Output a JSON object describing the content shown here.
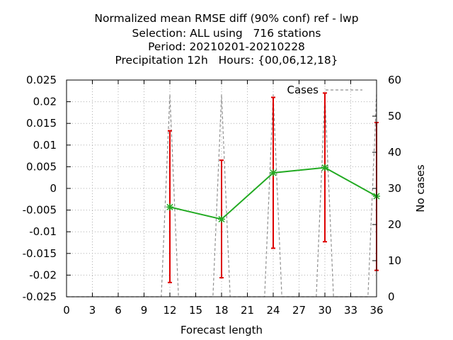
{
  "title_lines": [
    "Normalized mean RMSE diff (90% conf) ref - lwp",
    "Selection: ALL using   716 stations",
    "Period: 20210201-20210228",
    "Precipitation 12h   Hours: {00,06,12,18}"
  ],
  "chart_data": {
    "type": "line",
    "xlabel": "Forecast length",
    "ylabel": "",
    "y2label": "No cases",
    "xlim": [
      0,
      36
    ],
    "ylim": [
      -0.025,
      0.025
    ],
    "y2lim": [
      0,
      60
    ],
    "x_ticks": [
      "0",
      "3",
      "6",
      "9",
      "12",
      "15",
      "18",
      "21",
      "24",
      "27",
      "30",
      "33",
      "36"
    ],
    "y_ticks": [
      "0.025",
      "0.02",
      "0.015",
      "0.01",
      "0.005",
      "0",
      "-0.005",
      "-0.01",
      "-0.015",
      "-0.02",
      "-0.025"
    ],
    "y2_ticks": [
      "60",
      "50",
      "40",
      "30",
      "20",
      "10",
      "0"
    ],
    "grid": true,
    "legend": {
      "label": "Cases",
      "position": "top-right"
    },
    "series": [
      {
        "role": "mean",
        "color": "#22aa22",
        "x": [
          12,
          18,
          24,
          30,
          36
        ],
        "y": [
          -0.0043,
          -0.0071,
          0.0036,
          0.0048,
          -0.0018
        ],
        "err_low": [
          -0.0217,
          -0.0206,
          -0.0138,
          -0.0123,
          -0.0189
        ],
        "err_high": [
          0.0133,
          0.0065,
          0.021,
          0.022,
          0.0152
        ],
        "error_color": "#dd0000"
      },
      {
        "name": "Cases",
        "axis": "y2",
        "color": "#909090",
        "x": [
          0,
          11,
          12,
          13,
          17,
          18,
          19,
          23,
          24,
          25,
          29,
          30,
          31,
          35,
          36
        ],
        "y": [
          0,
          0,
          56,
          0,
          0,
          56,
          0,
          0,
          56,
          0,
          0,
          56,
          0,
          0,
          56
        ]
      }
    ]
  }
}
